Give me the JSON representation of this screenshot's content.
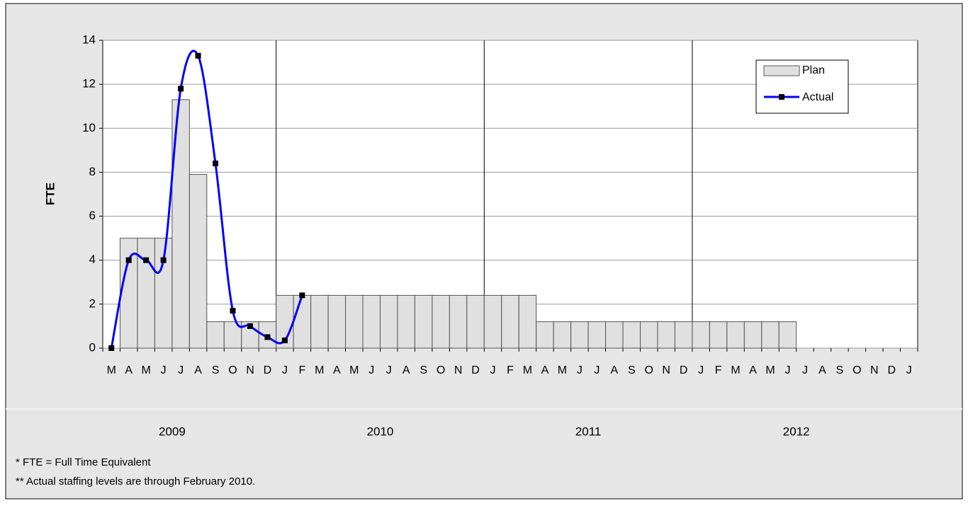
{
  "chart_data": {
    "type": "bar_line",
    "y_label": "FTE",
    "categories": [
      "M",
      "A",
      "M",
      "J",
      "J",
      "A",
      "S",
      "O",
      "N",
      "D",
      "J",
      "F",
      "M",
      "A",
      "M",
      "J",
      "J",
      "A",
      "S",
      "O",
      "N",
      "D",
      "J",
      "F",
      "M",
      "A",
      "M",
      "J",
      "J",
      "A",
      "S",
      "O",
      "N",
      "D",
      "J",
      "F",
      "M",
      "A",
      "M",
      "J",
      "J",
      "A",
      "S",
      "O",
      "N",
      "D",
      "J"
    ],
    "years": [
      "2009",
      "2010",
      "2011",
      "2012"
    ],
    "series": [
      {
        "name": "Plan",
        "color": "#e0e0e0",
        "values": [
          null,
          5,
          5,
          5,
          11.3,
          7.9,
          1.2,
          1.2,
          1.2,
          1.2,
          2.4,
          2.4,
          2.4,
          2.4,
          2.4,
          2.4,
          2.4,
          2.4,
          2.4,
          2.4,
          2.4,
          2.4,
          2.4,
          2.4,
          2.4,
          1.2,
          1.2,
          1.2,
          1.2,
          1.2,
          1.2,
          1.2,
          1.2,
          1.2,
          1.2,
          1.2,
          1.2,
          1.2,
          1.2,
          1.2,
          null,
          null,
          null,
          null,
          null,
          null,
          null
        ]
      },
      {
        "name": "Actual",
        "color": "#0000ff",
        "values": [
          0,
          4,
          4,
          4,
          11.8,
          13.3,
          8.4,
          1.7,
          1.0,
          0.5,
          0.35,
          2.4,
          null,
          null,
          null,
          null,
          null,
          null,
          null,
          null,
          null,
          null,
          null,
          null,
          null,
          null,
          null,
          null,
          null,
          null,
          null,
          null,
          null,
          null,
          null,
          null,
          null,
          null,
          null,
          null,
          null,
          null,
          null,
          null,
          null,
          null,
          null
        ]
      }
    ],
    "ylim": [
      0,
      14
    ],
    "yticks": [
      0,
      2,
      4,
      6,
      8,
      10,
      12,
      14
    ],
    "grid": true,
    "legend": "upper right",
    "footnotes": [
      "*  FTE = Full Time Equivalent",
      "** Actual staffing levels are through February 2010."
    ]
  }
}
